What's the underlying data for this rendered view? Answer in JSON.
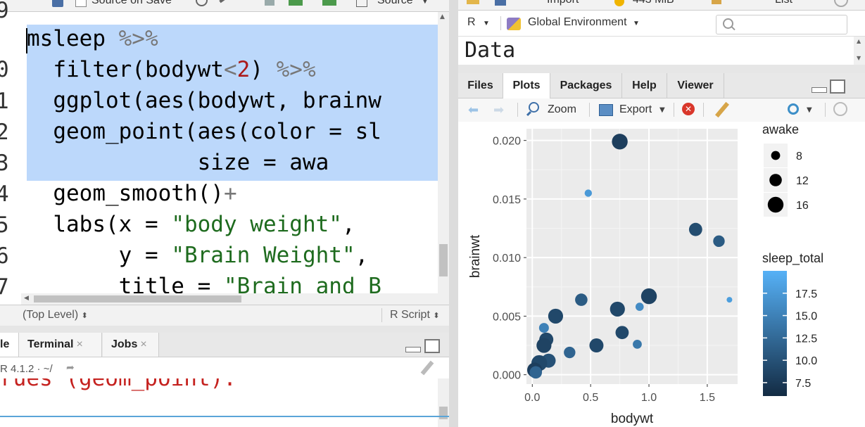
{
  "editor": {
    "toolbar": {
      "source_on_save": "Source on Save",
      "source": "Source"
    },
    "line_numbers": [
      "9",
      "0",
      "1",
      "2",
      "3",
      "4",
      "5",
      "6",
      "7"
    ],
    "code": {
      "l9": {
        "a": "msleep",
        "b": " %>%"
      },
      "l10": {
        "a": "  filter(bodywt",
        "b": "<",
        "c": "2",
        "d": ")",
        "e": " %>%"
      },
      "l11": {
        "a": "  ggplot(aes(bodywt, brainw"
      },
      "l12": {
        "a": "  geom_point(aes(color = sl"
      },
      "l13": {
        "a": "             size = awa"
      },
      "l14": {
        "a": "  geom_smooth()",
        "b": "+"
      },
      "l15": {
        "a": "  labs(x = ",
        "b": "\"body weight\"",
        "c": ","
      },
      "l16": {
        "a": "       y = ",
        "b": "\"Brain Weight\"",
        "c": ","
      },
      "l17": {
        "a": "       title = ",
        "b": "\"Brain and B"
      }
    },
    "status_left": "(Top Level)",
    "status_right": "R Script"
  },
  "console": {
    "tabs": [
      "le",
      "Terminal",
      "Jobs"
    ],
    "path": "R 4.1.2 · ~/",
    "body_text": "rues (geom_point)."
  },
  "environment": {
    "toolbar_top": {
      "import": "Import",
      "memory": "443 MiB",
      "view": "List"
    },
    "language": "R",
    "scope": "Global Environment",
    "search_placeholder": "",
    "section_title": "Data"
  },
  "files_pane": {
    "tabs": [
      "Files",
      "Plots",
      "Packages",
      "Help",
      "Viewer"
    ],
    "active_tab": "Plots",
    "toolbar": {
      "zoom": "Zoom",
      "export": "Export"
    }
  },
  "colors": {
    "selection": "#bcd8fb",
    "string": "#1e6b1e",
    "number": "#ab1b1b"
  },
  "chart_data": {
    "type": "scatter",
    "xlabel": "bodywt",
    "ylabel": "brainwt",
    "xlim": [
      -0.05,
      1.76
    ],
    "ylim": [
      -0.0008,
      0.021
    ],
    "x_ticks": [
      0,
      0.5,
      1,
      1.5
    ],
    "x_tick_labels": [
      "0.0",
      "0.5",
      "1.0",
      "1.5"
    ],
    "y_ticks": [
      0,
      0.005,
      0.01,
      0.015,
      0.02
    ],
    "y_tick_labels": [
      "0.000",
      "0.005",
      "0.010",
      "0.015",
      "0.020"
    ],
    "grid": true,
    "legend_size": {
      "title": "awake",
      "entries": [
        {
          "label": "8",
          "value": 8
        },
        {
          "label": "12",
          "value": 12
        },
        {
          "label": "16",
          "value": 16
        }
      ]
    },
    "legend_color": {
      "title": "sleep_total",
      "ticks": [
        {
          "label": "17.5",
          "value": 17.5
        },
        {
          "label": "15.0",
          "value": 15
        },
        {
          "label": "12.5",
          "value": 12.5
        },
        {
          "label": "10.0",
          "value": 10
        },
        {
          "label": "7.5",
          "value": 7.5
        }
      ],
      "range": [
        6,
        20
      ],
      "low_color": "#132b43",
      "high_color": "#56b1f7"
    },
    "points": [
      {
        "x": 0.75,
        "y": 0.0199,
        "color_value": 8,
        "size_value": 16
      },
      {
        "x": 0.48,
        "y": 0.0155,
        "color_value": 17.5,
        "size_value": 6
      },
      {
        "x": 1.4,
        "y": 0.0124,
        "color_value": 9.5,
        "size_value": 13
      },
      {
        "x": 1.6,
        "y": 0.0114,
        "color_value": 11,
        "size_value": 11
      },
      {
        "x": 1.69,
        "y": 0.0064,
        "color_value": 18,
        "size_value": 4
      },
      {
        "x": 1.0,
        "y": 0.0067,
        "color_value": 8.5,
        "size_value": 16
      },
      {
        "x": 0.92,
        "y": 0.0058,
        "color_value": 16,
        "size_value": 7
      },
      {
        "x": 0.73,
        "y": 0.0056,
        "color_value": 9,
        "size_value": 15
      },
      {
        "x": 0.42,
        "y": 0.0064,
        "color_value": 11,
        "size_value": 12
      },
      {
        "x": 0.2,
        "y": 0.005,
        "color_value": 9,
        "size_value": 15
      },
      {
        "x": 0.1,
        "y": 0.004,
        "color_value": 15,
        "size_value": 9
      },
      {
        "x": 0.77,
        "y": 0.0036,
        "color_value": 9,
        "size_value": 13
      },
      {
        "x": 0.9,
        "y": 0.0026,
        "color_value": 14,
        "size_value": 8
      },
      {
        "x": 0.55,
        "y": 0.0025,
        "color_value": 9,
        "size_value": 14
      },
      {
        "x": 0.32,
        "y": 0.0019,
        "color_value": 12,
        "size_value": 11
      },
      {
        "x": 0.12,
        "y": 0.003,
        "color_value": 9,
        "size_value": 14
      },
      {
        "x": 0.1,
        "y": 0.0025,
        "color_value": 8.5,
        "size_value": 15
      },
      {
        "x": 0.14,
        "y": 0.0012,
        "color_value": 10,
        "size_value": 14
      },
      {
        "x": 0.06,
        "y": 0.001,
        "color_value": 9,
        "size_value": 16
      },
      {
        "x": 0.02,
        "y": 0.0004,
        "color_value": 8,
        "size_value": 15
      },
      {
        "x": 0.03,
        "y": 0.0002,
        "color_value": 12,
        "size_value": 12
      }
    ]
  }
}
